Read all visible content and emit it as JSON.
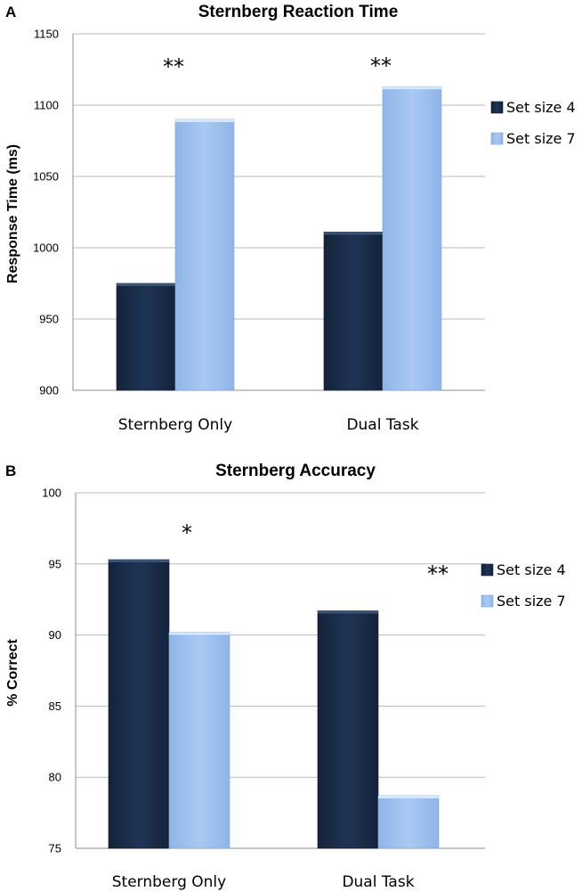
{
  "chart_data": [
    {
      "panel": "A",
      "type": "bar",
      "title": "Sternberg Reaction Time",
      "xlabel": "",
      "ylabel": "Response Time (ms)",
      "ylim": [
        900,
        1150
      ],
      "yticks": [
        900,
        950,
        1000,
        1050,
        1100,
        1150
      ],
      "categories": [
        "Sternberg Only",
        "Dual Task"
      ],
      "series": [
        {
          "name": "Set size 4",
          "color": "#1b2e4b",
          "values": [
            975,
            1011
          ]
        },
        {
          "name": "Set size 7",
          "color": "#9dc1ee",
          "values": [
            1090,
            1113
          ]
        }
      ],
      "significance": [
        "**",
        "**"
      ],
      "legend": "right"
    },
    {
      "panel": "B",
      "type": "bar",
      "title": "Sternberg Accuracy",
      "xlabel": "",
      "ylabel": "% Correct",
      "ylim": [
        75,
        100
      ],
      "yticks": [
        75,
        80,
        85,
        90,
        95,
        100
      ],
      "categories": [
        "Sternberg Only",
        "Dual Task"
      ],
      "series": [
        {
          "name": "Set size 4",
          "color": "#1b2e4b",
          "values": [
            95.3,
            91.7
          ]
        },
        {
          "name": "Set size 7",
          "color": "#9dc1ee",
          "values": [
            90.2,
            78.7
          ]
        }
      ],
      "significance": [
        "*",
        "**"
      ],
      "legend": "right"
    }
  ]
}
